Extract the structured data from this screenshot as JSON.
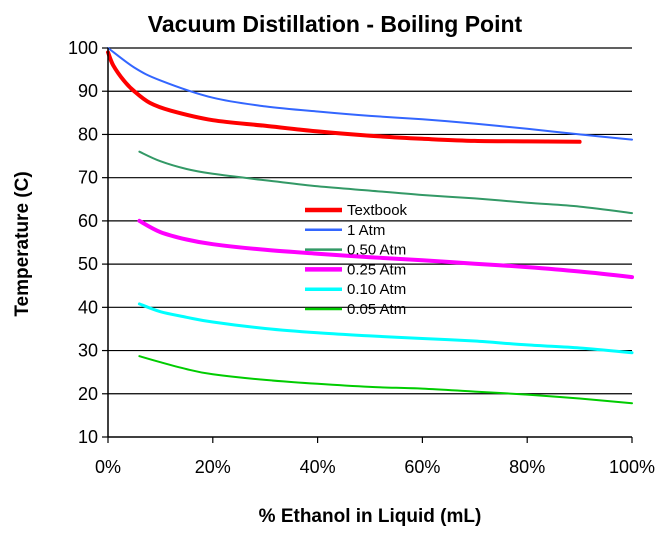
{
  "chart_data": {
    "type": "line",
    "title": "Vacuum Distillation - Boiling Point",
    "xlabel": "% Ethanol in Liquid (mL)",
    "ylabel": "Temperature (C)",
    "xlim": [
      0,
      100
    ],
    "ylim": [
      10,
      100
    ],
    "x_ticks": [
      "0%",
      "20%",
      "40%",
      "60%",
      "80%",
      "100%"
    ],
    "y_ticks": [
      "10",
      "20",
      "30",
      "40",
      "50",
      "60",
      "70",
      "80",
      "90",
      "100"
    ],
    "grid": "horizontal",
    "legend_position": "center",
    "series": [
      {
        "name": "Textbook",
        "color": "#ff0000",
        "points": [
          [
            0,
            99
          ],
          [
            1,
            96
          ],
          [
            3,
            92.5
          ],
          [
            5,
            90
          ],
          [
            8,
            87.3
          ],
          [
            12,
            85.5
          ],
          [
            20,
            83.3
          ],
          [
            30,
            82
          ],
          [
            40,
            80.7
          ],
          [
            50,
            79.7
          ],
          [
            60,
            79
          ],
          [
            70,
            78.5
          ],
          [
            80,
            78.4
          ],
          [
            90,
            78.3
          ]
        ]
      },
      {
        "name": "1 Atm",
        "color": "#3366ff",
        "points": [
          [
            0,
            100
          ],
          [
            5,
            95.5
          ],
          [
            10,
            92.5
          ],
          [
            20,
            88.5
          ],
          [
            30,
            86.5
          ],
          [
            40,
            85.3
          ],
          [
            50,
            84.3
          ],
          [
            60,
            83.5
          ],
          [
            70,
            82.5
          ],
          [
            80,
            81.3
          ],
          [
            90,
            80
          ],
          [
            100,
            78.8
          ]
        ]
      },
      {
        "name": "0.50 Atm",
        "color": "#339966",
        "points": [
          [
            6,
            76
          ],
          [
            10,
            73.8
          ],
          [
            15,
            72
          ],
          [
            20,
            70.9
          ],
          [
            30,
            69.4
          ],
          [
            40,
            68
          ],
          [
            50,
            67
          ],
          [
            60,
            66
          ],
          [
            70,
            65.2
          ],
          [
            80,
            64.2
          ],
          [
            90,
            63.3
          ],
          [
            100,
            61.8
          ]
        ]
      },
      {
        "name": "0.25 Atm",
        "color": "#ff00ff",
        "points": [
          [
            6,
            60
          ],
          [
            10,
            57.4
          ],
          [
            15,
            55.7
          ],
          [
            20,
            54.6
          ],
          [
            30,
            53.3
          ],
          [
            40,
            52.4
          ],
          [
            50,
            51.6
          ],
          [
            60,
            50.9
          ],
          [
            70,
            50.1
          ],
          [
            80,
            49.3
          ],
          [
            90,
            48.3
          ],
          [
            100,
            47
          ]
        ]
      },
      {
        "name": "0.10 Atm",
        "color": "#00ffff",
        "points": [
          [
            6,
            40.8
          ],
          [
            10,
            39
          ],
          [
            15,
            37.7
          ],
          [
            20,
            36.6
          ],
          [
            30,
            35.1
          ],
          [
            40,
            34.1
          ],
          [
            50,
            33.4
          ],
          [
            60,
            32.8
          ],
          [
            70,
            32.2
          ],
          [
            80,
            31.3
          ],
          [
            90,
            30.6
          ],
          [
            100,
            29.5
          ]
        ]
      },
      {
        "name": "0.05 Atm",
        "color": "#00cc00",
        "points": [
          [
            6,
            28.7
          ],
          [
            10,
            27.3
          ],
          [
            15,
            25.7
          ],
          [
            20,
            24.5
          ],
          [
            30,
            23.2
          ],
          [
            40,
            22.3
          ],
          [
            50,
            21.6
          ],
          [
            60,
            21.2
          ],
          [
            70,
            20.5
          ],
          [
            80,
            19.8
          ],
          [
            90,
            18.9
          ],
          [
            100,
            17.8
          ]
        ]
      }
    ]
  }
}
